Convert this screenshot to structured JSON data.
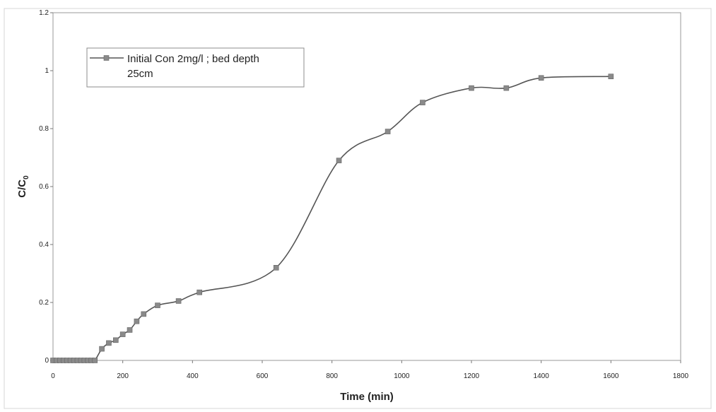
{
  "chart_data": {
    "type": "line",
    "title": "",
    "xlabel": "Time (min)",
    "ylabel_main": "C/C",
    "ylabel_sub": "0",
    "xlim": [
      0,
      1800
    ],
    "ylim": [
      0,
      1.2
    ],
    "x_ticks": [
      0,
      200,
      400,
      600,
      800,
      1000,
      1200,
      1400,
      1600,
      1800
    ],
    "y_ticks": [
      0,
      0.2,
      0.4,
      0.6,
      0.8,
      1,
      1.2
    ],
    "grid": false,
    "legend_position": "top-left",
    "legend_line1": "Initial Con 2mg/l ; bed depth",
    "legend_line2": "25cm",
    "series": [
      {
        "name": "Initial Con 2mg/l ; bed depth 25cm",
        "color": "#555555",
        "marker_color": "#8a8a8a",
        "x": [
          0,
          10,
          20,
          30,
          40,
          50,
          60,
          70,
          80,
          90,
          100,
          110,
          120,
          140,
          160,
          180,
          200,
          220,
          240,
          260,
          300,
          360,
          420,
          640,
          820,
          960,
          1060,
          1200,
          1300,
          1400,
          1600
        ],
        "y": [
          0,
          0,
          0,
          0,
          0,
          0,
          0,
          0,
          0,
          0,
          0,
          0,
          0,
          0.04,
          0.06,
          0.07,
          0.09,
          0.105,
          0.135,
          0.16,
          0.19,
          0.205,
          0.235,
          0.32,
          0.69,
          0.79,
          0.89,
          0.94,
          0.94,
          0.975,
          0.98
        ]
      }
    ]
  }
}
